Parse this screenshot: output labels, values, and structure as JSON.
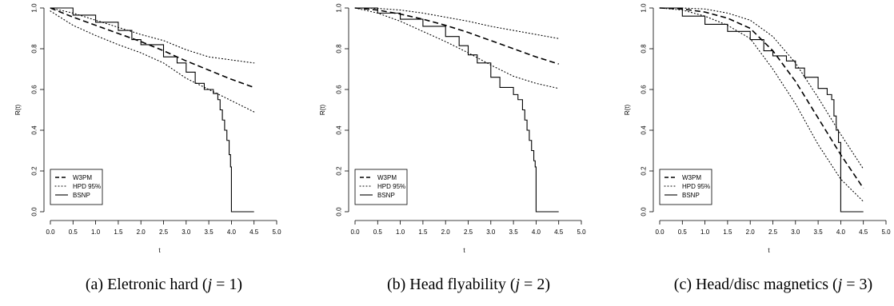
{
  "figure": {
    "captions": [
      {
        "prefix": "(a) Eletronic hard (",
        "var": "j",
        "suffix": " = 1)"
      },
      {
        "prefix": "(b) Head flyability (",
        "var": "j",
        "suffix": " = 2)"
      },
      {
        "prefix": "(c) Head/disc magnetics (",
        "var": "j",
        "suffix": " = 3)"
      }
    ]
  },
  "chart_data": [
    {
      "type": "line",
      "xlabel": "t",
      "ylabel": "R(t)",
      "xlim": [
        0,
        5
      ],
      "ylim": [
        0,
        1
      ],
      "xticks": [
        "0.0",
        "0.5",
        "1.0",
        "1.5",
        "2.0",
        "2.5",
        "3.0",
        "3.5",
        "4.0",
        "4.5",
        "5.0"
      ],
      "yticks": [
        "0.0",
        "0.2",
        "0.4",
        "0.6",
        "0.8",
        "1.0"
      ],
      "legend": {
        "placement": "bottom-left",
        "entries": [
          "W3PM",
          "HPD 95%",
          "BSNP"
        ]
      },
      "series": [
        {
          "name": "W3PM",
          "style": "dashed",
          "x": [
            0,
            0.5,
            1,
            1.5,
            2,
            2.5,
            3,
            3.5,
            4,
            4.5
          ],
          "y": [
            1.0,
            0.955,
            0.915,
            0.875,
            0.835,
            0.79,
            0.74,
            0.695,
            0.65,
            0.61
          ]
        },
        {
          "name": "HPD 95%",
          "style": "dotted",
          "bound": "upper",
          "x": [
            0,
            0.5,
            1,
            1.5,
            2,
            2.5,
            3,
            3.5,
            4,
            4.5
          ],
          "y": [
            1.0,
            0.975,
            0.94,
            0.905,
            0.87,
            0.84,
            0.795,
            0.76,
            0.745,
            0.73
          ]
        },
        {
          "name": "HPD 95%",
          "style": "dotted",
          "bound": "lower",
          "x": [
            0,
            0.5,
            1,
            1.5,
            2,
            2.5,
            3,
            3.5,
            4,
            4.5
          ],
          "y": [
            0.985,
            0.915,
            0.865,
            0.82,
            0.78,
            0.73,
            0.655,
            0.6,
            0.545,
            0.49
          ]
        },
        {
          "name": "BSNP",
          "style": "step",
          "x": [
            0,
            0.5,
            1,
            1.5,
            1.8,
            2,
            2.5,
            2.8,
            3,
            3.2,
            3.4,
            3.6,
            3.7,
            3.75,
            3.8,
            3.85,
            3.9,
            3.95,
            3.98,
            4.0,
            4.5
          ],
          "y": [
            1.0,
            0.965,
            0.93,
            0.89,
            0.845,
            0.82,
            0.76,
            0.73,
            0.685,
            0.63,
            0.6,
            0.58,
            0.55,
            0.5,
            0.45,
            0.4,
            0.35,
            0.28,
            0.22,
            0.0,
            0.0
          ]
        }
      ]
    },
    {
      "type": "line",
      "xlabel": "t",
      "ylabel": "R(t)",
      "xlim": [
        0,
        5
      ],
      "ylim": [
        0,
        1
      ],
      "xticks": [
        "0.0",
        "0.5",
        "1.0",
        "1.5",
        "2.0",
        "2.5",
        "3.0",
        "3.5",
        "4.0",
        "4.5",
        "5.0"
      ],
      "yticks": [
        "0.0",
        "0.2",
        "0.4",
        "0.6",
        "0.8",
        "1.0"
      ],
      "legend": {
        "placement": "bottom-left",
        "entries": [
          "W3PM",
          "HPD 95%",
          "BSNP"
        ]
      },
      "series": [
        {
          "name": "W3PM",
          "style": "dashed",
          "x": [
            0,
            0.5,
            1,
            1.5,
            2,
            2.5,
            3,
            3.5,
            4,
            4.5
          ],
          "y": [
            1.0,
            0.99,
            0.97,
            0.945,
            0.915,
            0.88,
            0.84,
            0.8,
            0.76,
            0.725
          ]
        },
        {
          "name": "HPD 95%",
          "style": "dotted",
          "bound": "upper",
          "x": [
            0,
            0.5,
            1,
            1.5,
            2,
            2.5,
            3,
            3.5,
            4,
            4.5
          ],
          "y": [
            1.0,
            0.998,
            0.99,
            0.975,
            0.955,
            0.935,
            0.91,
            0.89,
            0.87,
            0.85
          ]
        },
        {
          "name": "HPD 95%",
          "style": "dotted",
          "bound": "lower",
          "x": [
            0,
            0.5,
            1,
            1.5,
            2,
            2.5,
            3,
            3.5,
            4,
            4.5
          ],
          "y": [
            1.0,
            0.975,
            0.935,
            0.885,
            0.835,
            0.78,
            0.72,
            0.665,
            0.63,
            0.605
          ]
        },
        {
          "name": "BSNP",
          "style": "step",
          "x": [
            0,
            0.5,
            1,
            1.5,
            2,
            2.3,
            2.5,
            2.7,
            3,
            3.2,
            3.5,
            3.6,
            3.7,
            3.75,
            3.8,
            3.85,
            3.9,
            3.95,
            3.98,
            4.0,
            4.5
          ],
          "y": [
            1.0,
            0.975,
            0.945,
            0.91,
            0.86,
            0.815,
            0.77,
            0.73,
            0.66,
            0.61,
            0.575,
            0.55,
            0.5,
            0.45,
            0.4,
            0.35,
            0.3,
            0.25,
            0.22,
            0.0,
            0.0
          ]
        }
      ]
    },
    {
      "type": "line",
      "xlabel": "t",
      "ylabel": "R(t)",
      "xlim": [
        0,
        5
      ],
      "ylim": [
        0,
        1
      ],
      "xticks": [
        "0.0",
        "0.5",
        "1.0",
        "1.5",
        "2.0",
        "2.5",
        "3.0",
        "3.5",
        "4.0",
        "4.5",
        "5.0"
      ],
      "yticks": [
        "0.0",
        "0.2",
        "0.4",
        "0.6",
        "0.8",
        "1.0"
      ],
      "legend": {
        "placement": "bottom-left",
        "entries": [
          "W3PM",
          "HPD 95%",
          "BSNP"
        ]
      },
      "series": [
        {
          "name": "W3PM",
          "style": "dashed",
          "x": [
            0,
            0.5,
            1,
            1.5,
            2,
            2.5,
            3,
            3.5,
            4,
            4.5
          ],
          "y": [
            1.0,
            0.995,
            0.98,
            0.95,
            0.9,
            0.79,
            0.64,
            0.46,
            0.28,
            0.115
          ]
        },
        {
          "name": "HPD 95%",
          "style": "dotted",
          "bound": "upper",
          "x": [
            0,
            0.5,
            1,
            1.5,
            2,
            2.5,
            3,
            3.5,
            4,
            4.5
          ],
          "y": [
            1.0,
            1.0,
            0.995,
            0.975,
            0.94,
            0.86,
            0.73,
            0.56,
            0.38,
            0.21
          ]
        },
        {
          "name": "HPD 95%",
          "style": "dotted",
          "bound": "lower",
          "x": [
            0,
            0.5,
            1,
            1.5,
            2,
            2.5,
            3,
            3.5,
            4,
            4.5
          ],
          "y": [
            1.0,
            0.99,
            0.96,
            0.915,
            0.85,
            0.7,
            0.53,
            0.33,
            0.16,
            0.05
          ]
        },
        {
          "name": "BSNP",
          "style": "step",
          "x": [
            0,
            0.5,
            1,
            1.5,
            2,
            2.3,
            2.5,
            2.8,
            3,
            3.2,
            3.5,
            3.7,
            3.8,
            3.85,
            3.9,
            3.95,
            4.0,
            4.5
          ],
          "y": [
            1.0,
            0.96,
            0.92,
            0.885,
            0.845,
            0.79,
            0.765,
            0.74,
            0.705,
            0.66,
            0.605,
            0.575,
            0.55,
            0.47,
            0.4,
            0.34,
            0.0,
            0.0
          ]
        }
      ]
    }
  ]
}
